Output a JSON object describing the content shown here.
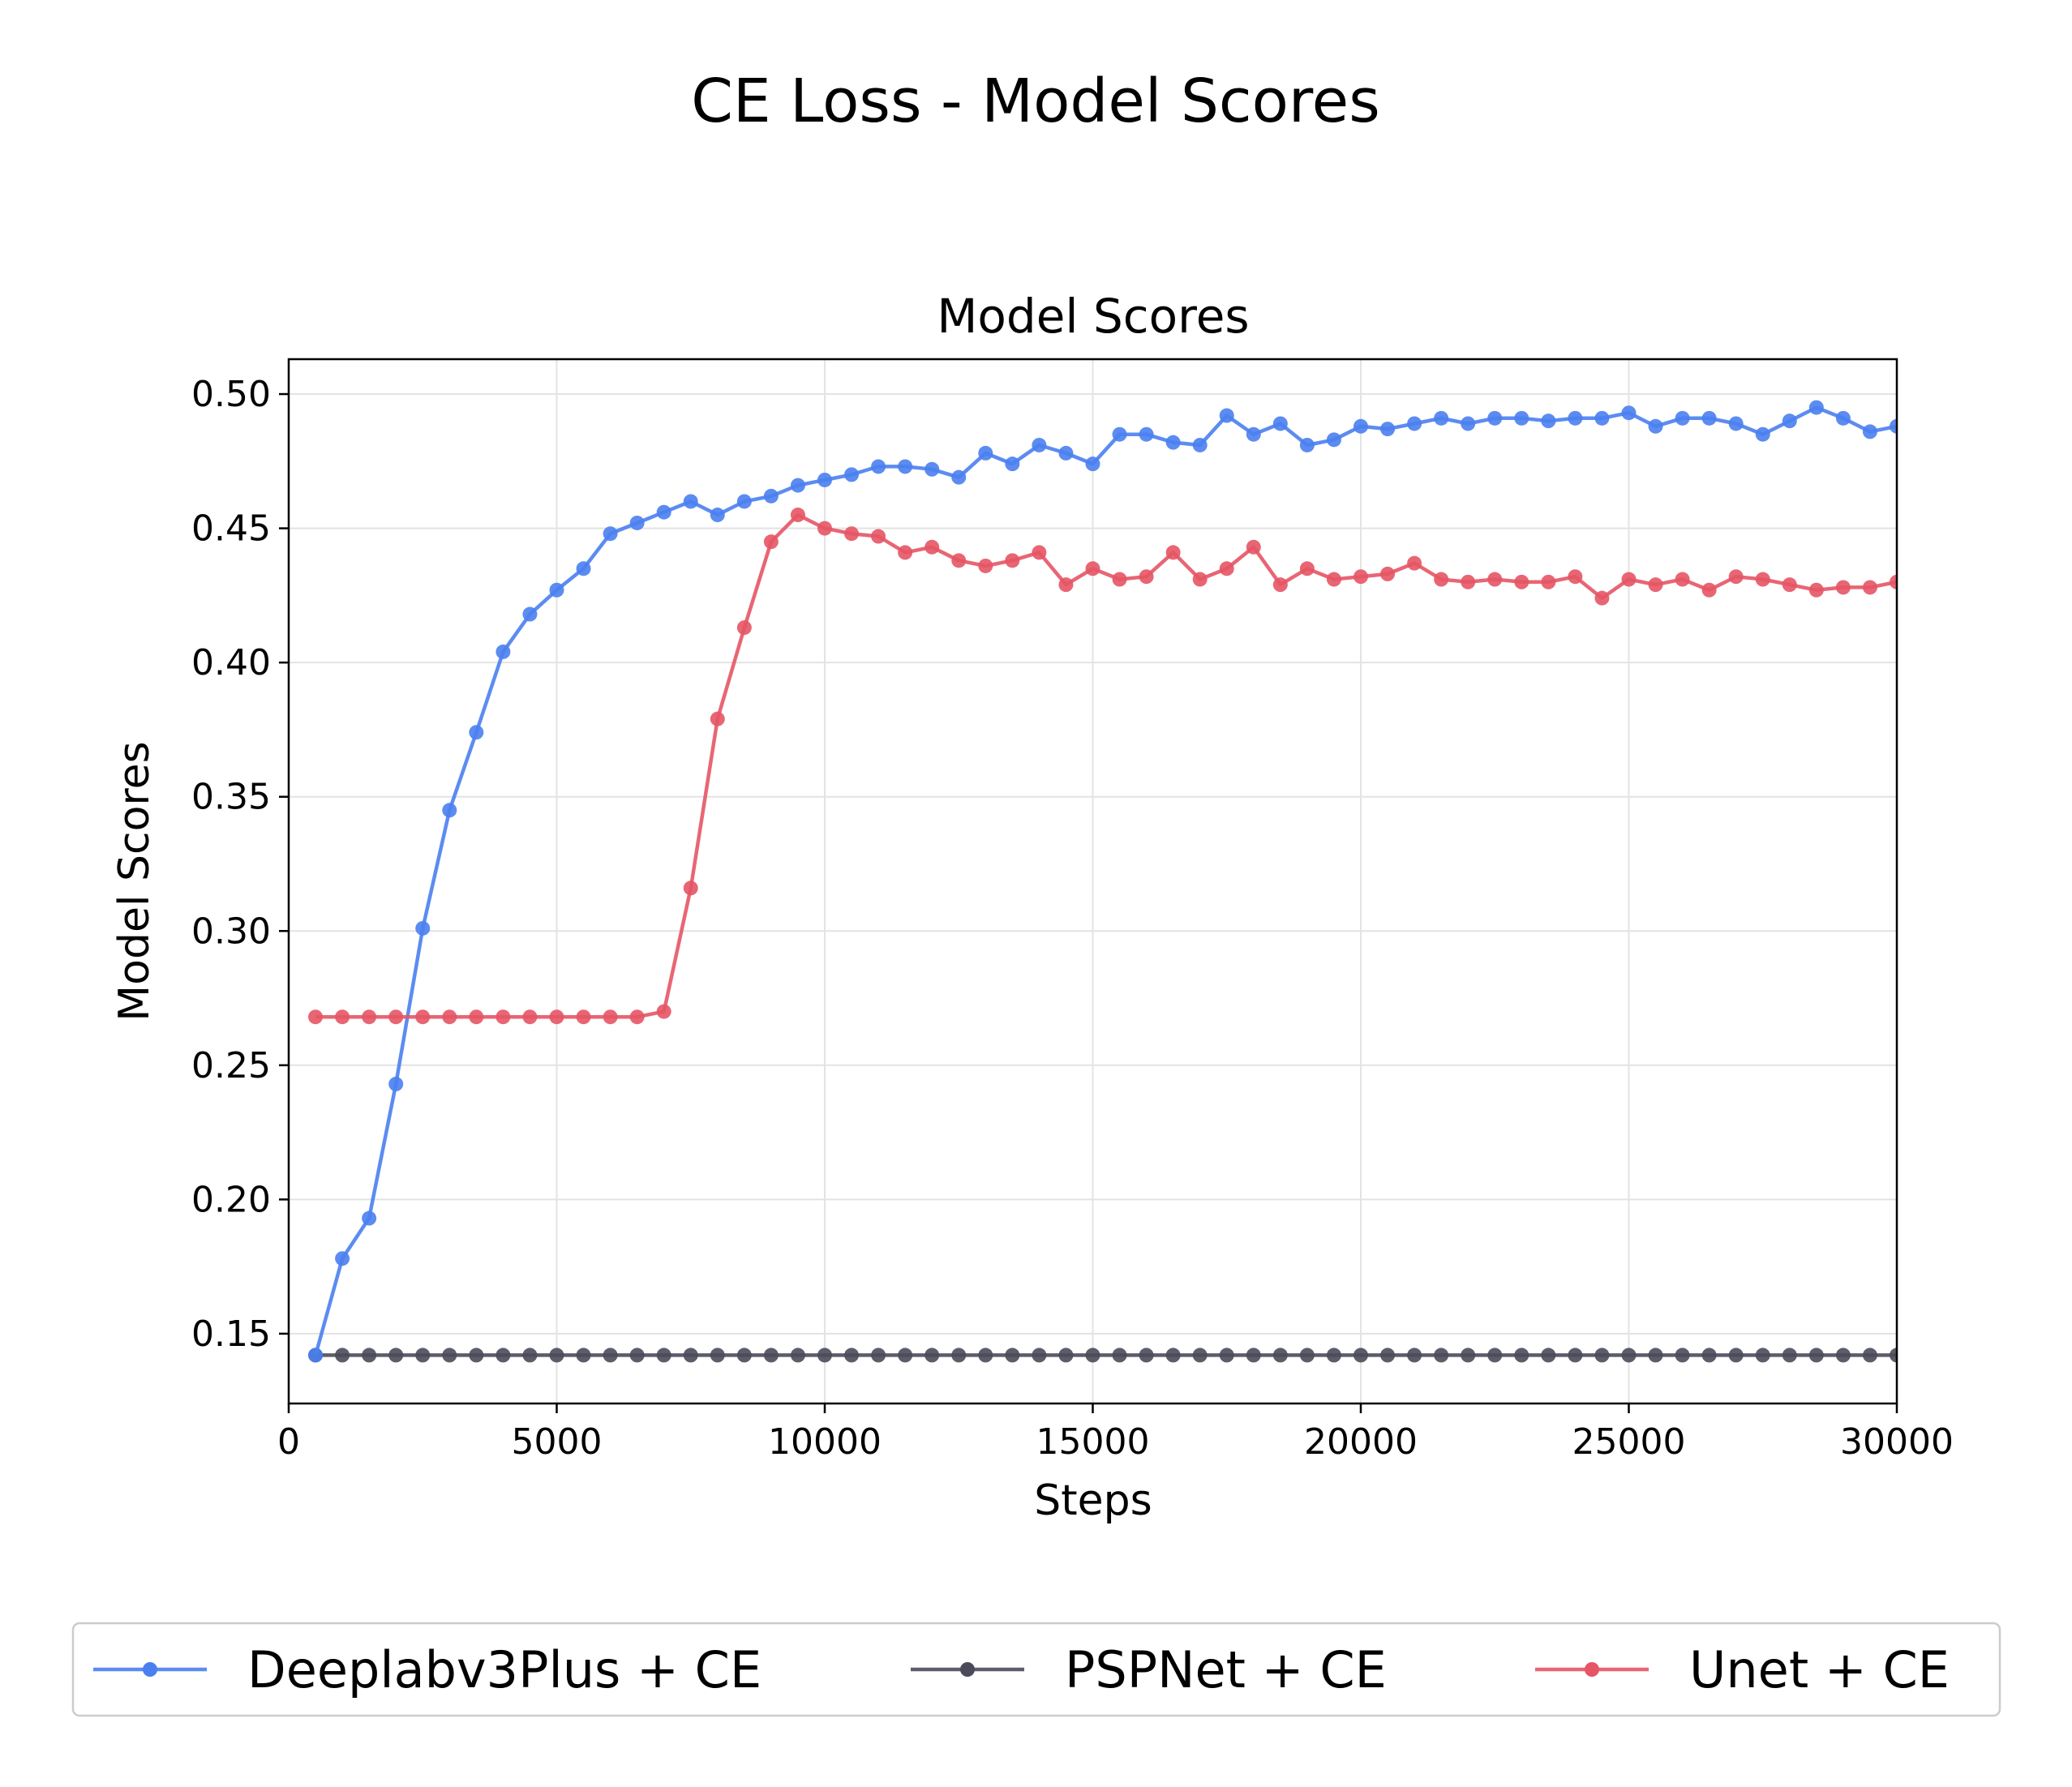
{
  "figure": {
    "suptitle": "CE Loss - Model Scores"
  },
  "chart_data": {
    "type": "line",
    "title": "Model Scores",
    "xlabel": "Steps",
    "ylabel": "Model Scores",
    "xlim": [
      0,
      30000
    ],
    "ylim": [
      0.124,
      0.513
    ],
    "x_ticks": [
      0,
      5000,
      10000,
      15000,
      20000,
      25000,
      30000
    ],
    "x_tick_labels": [
      "0",
      "5000",
      "10000",
      "15000",
      "20000",
      "25000",
      "30000"
    ],
    "y_ticks": [
      0.15,
      0.2,
      0.25,
      0.3,
      0.35,
      0.4,
      0.45,
      0.5
    ],
    "y_tick_labels": [
      "0.15",
      "0.20",
      "0.25",
      "0.30",
      "0.35",
      "0.40",
      "0.45",
      "0.50"
    ],
    "grid": true,
    "legend_position": "bottom-center",
    "x": [
      500,
      1000,
      1500,
      2000,
      2500,
      3000,
      3500,
      4000,
      4500,
      5000,
      5500,
      6000,
      6500,
      7000,
      7500,
      8000,
      8500,
      9000,
      9500,
      10000,
      10500,
      11000,
      11500,
      12000,
      12500,
      13000,
      13500,
      14000,
      14500,
      15000,
      15500,
      16000,
      16500,
      17000,
      17500,
      18000,
      18500,
      19000,
      19500,
      20000,
      20500,
      21000,
      21500,
      22000,
      22500,
      23000,
      23500,
      24000,
      24500,
      25000,
      25500,
      26000,
      26500,
      27000,
      27500,
      28000,
      28500,
      29000,
      29500,
      30000
    ],
    "series": [
      {
        "name": "Deeplabv3Plus + CE",
        "color": "#4a7ff0",
        "values": [
          0.142,
          0.178,
          0.193,
          0.243,
          0.301,
          0.345,
          0.374,
          0.404,
          0.418,
          0.427,
          0.435,
          0.448,
          0.452,
          0.456,
          0.46,
          0.455,
          0.46,
          0.462,
          0.466,
          0.468,
          0.47,
          0.473,
          0.473,
          0.472,
          0.469,
          0.478,
          0.474,
          0.481,
          0.478,
          0.474,
          0.485,
          0.485,
          0.482,
          0.481,
          0.492,
          0.485,
          0.489,
          0.481,
          0.483,
          0.488,
          0.487,
          0.489,
          0.491,
          0.489,
          0.491,
          0.491,
          0.49,
          0.491,
          0.491,
          0.493,
          0.488,
          0.491,
          0.491,
          0.489,
          0.485,
          0.49,
          0.495,
          0.491,
          0.486,
          0.488
        ]
      },
      {
        "name": "PSPNet + CE",
        "color": "#4a4a5a",
        "values": [
          0.142,
          0.142,
          0.142,
          0.142,
          0.142,
          0.142,
          0.142,
          0.142,
          0.142,
          0.142,
          0.142,
          0.142,
          0.142,
          0.142,
          0.142,
          0.142,
          0.142,
          0.142,
          0.142,
          0.142,
          0.142,
          0.142,
          0.142,
          0.142,
          0.142,
          0.142,
          0.142,
          0.142,
          0.142,
          0.142,
          0.142,
          0.142,
          0.142,
          0.142,
          0.142,
          0.142,
          0.142,
          0.142,
          0.142,
          0.142,
          0.142,
          0.142,
          0.142,
          0.142,
          0.142,
          0.142,
          0.142,
          0.142,
          0.142,
          0.142,
          0.142,
          0.142,
          0.142,
          0.142,
          0.142,
          0.142,
          0.142,
          0.142,
          0.142,
          0.142
        ]
      },
      {
        "name": "Unet + CE",
        "color": "#e55565",
        "values": [
          0.268,
          0.268,
          0.268,
          0.268,
          0.268,
          0.268,
          0.268,
          0.268,
          0.268,
          0.268,
          0.268,
          0.268,
          0.268,
          0.27,
          0.316,
          0.379,
          0.413,
          0.445,
          0.455,
          0.45,
          0.448,
          0.447,
          0.441,
          0.443,
          0.438,
          0.436,
          0.438,
          0.441,
          0.429,
          0.435,
          0.431,
          0.432,
          0.441,
          0.431,
          0.435,
          0.443,
          0.429,
          0.435,
          0.431,
          0.432,
          0.433,
          0.437,
          0.431,
          0.43,
          0.431,
          0.43,
          0.43,
          0.432,
          0.424,
          0.431,
          0.429,
          0.431,
          0.427,
          0.432,
          0.431,
          0.429,
          0.427,
          0.428,
          0.428,
          0.43
        ]
      }
    ]
  }
}
